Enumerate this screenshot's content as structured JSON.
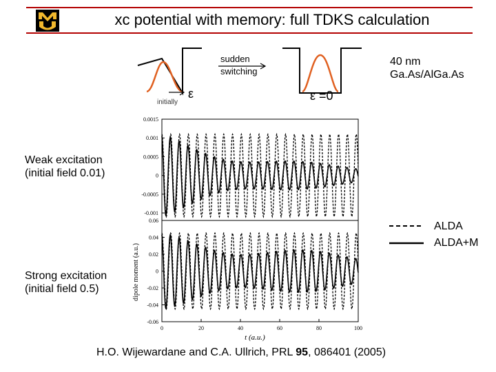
{
  "slide": {
    "title": "xc potential with memory: full TDKS calculation",
    "sample_label": [
      "40 nm",
      "Ga.As/AlGa.As"
    ],
    "weak_label": [
      "Weak excitation",
      "(initial field 0.01)"
    ],
    "strong_label": [
      "Strong excitation",
      "(initial field 0.5)"
    ],
    "citation": {
      "prefix": "H.O. Wijewardane and C.A. Ullrich, PRL ",
      "volume": "95",
      "suffix": ", 086401 (2005)"
    },
    "inset": {
      "sudden": "sudden",
      "switching": "switching",
      "epsilon": "ε",
      "epsilon_zero": "ε =0",
      "initially": "initially"
    },
    "colors": {
      "rule": "#b30000",
      "orange": "#e06020",
      "logo_gold": "#f1b82d"
    }
  },
  "chart_data": [
    {
      "type": "line",
      "panel": "top",
      "xlim": [
        0,
        100
      ],
      "ylim": [
        -0.0012,
        0.0015
      ],
      "yticks": [
        0.0015,
        0.001,
        0.0005,
        0,
        -0.0005,
        -0.001
      ],
      "ytick_labels": [
        "0.0015",
        "0.001",
        "0.0005",
        "0",
        "-0.0005",
        "-0.001"
      ],
      "series": [
        {
          "name": "ALDA",
          "style": "dashed",
          "amplitude": 0.0011,
          "period": 4.5,
          "damping": 0.0
        },
        {
          "name": "ALDA+M",
          "style": "solid",
          "amplitude": 0.0011,
          "period": 4.5,
          "damping": 0.015
        }
      ]
    },
    {
      "type": "line",
      "panel": "bottom",
      "xlim": [
        0,
        100
      ],
      "ylim": [
        -0.06,
        0.06
      ],
      "yticks": [
        0.06,
        0.04,
        0.02,
        0,
        -0.02,
        -0.04,
        -0.06
      ],
      "ytick_labels": [
        "0.06",
        "0.04",
        "0.02",
        "0",
        "-0.02",
        "-0.04",
        "-0.06"
      ],
      "xticks": [
        0,
        20,
        40,
        60,
        80,
        100
      ],
      "xtick_labels": [
        "0",
        "20",
        "40",
        "60",
        "80",
        "100"
      ],
      "xlabel": "t (a.u.)",
      "ylabel": "dipole moment (a.u.)",
      "series": [
        {
          "name": "ALDA",
          "style": "dashed",
          "amplitude": 0.045,
          "period": 4.5,
          "damping": 0.0
        },
        {
          "name": "ALDA+M",
          "style": "solid",
          "amplitude": 0.045,
          "period": 4.5,
          "damping": 0.008
        }
      ]
    }
  ]
}
